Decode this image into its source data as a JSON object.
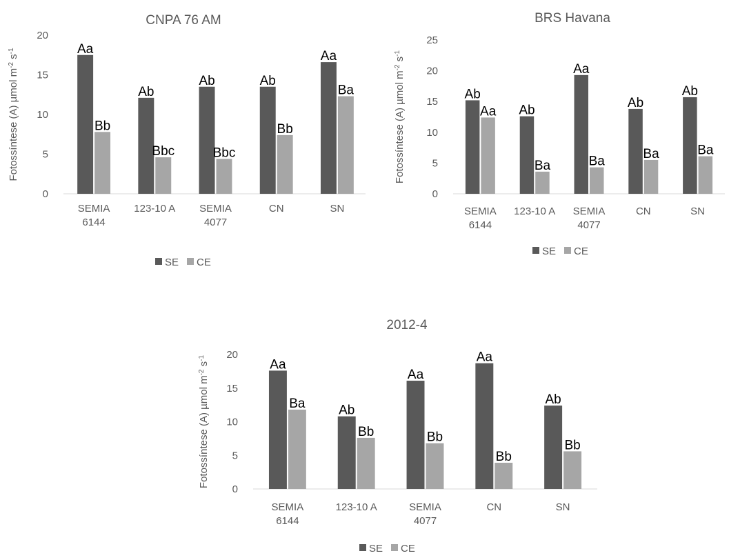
{
  "colors": {
    "SE": "#595959",
    "CE": "#a6a6a6",
    "axis": "#d9d9d9",
    "text": "#595959"
  },
  "chart_data": [
    {
      "type": "bar",
      "title": "CNPA 76 AM",
      "ylabel": "Fotossíntese (A) µmol m-2 s-1",
      "ylabel_parts": [
        "Fotossíntese (A) µmol m",
        "-2",
        " s",
        "-1"
      ],
      "categories": [
        [
          "SEMIA",
          "6144"
        ],
        [
          "123-10 A"
        ],
        [
          "SEMIA",
          "4077"
        ],
        [
          "CN"
        ],
        [
          "SN"
        ]
      ],
      "ylim": [
        0,
        20
      ],
      "yticks": [
        0,
        5,
        10,
        15,
        20
      ],
      "legend_position": "bottom",
      "series": [
        {
          "name": "SE",
          "values": [
            17.5,
            12.1,
            13.5,
            13.5,
            16.6
          ],
          "labels": [
            "Aa",
            "Ab",
            "Ab",
            "Ab",
            "Aa"
          ]
        },
        {
          "name": "CE",
          "values": [
            7.8,
            4.6,
            4.4,
            7.4,
            12.3
          ],
          "labels": [
            "Bb",
            "Bbc",
            "Bbc",
            "Bb",
            "Ba"
          ]
        }
      ]
    },
    {
      "type": "bar",
      "title": "BRS Havana",
      "ylabel": "Fotossíntese (A) µmol m-2 s-1",
      "ylabel_parts": [
        "Fotossíntese (A) µmol m",
        "-2",
        " s",
        "-1"
      ],
      "categories": [
        [
          "SEMIA",
          "6144"
        ],
        [
          "123-10 A"
        ],
        [
          "SEMIA",
          "4077"
        ],
        [
          "CN"
        ],
        [
          "SN"
        ]
      ],
      "ylim": [
        0,
        25
      ],
      "yticks": [
        0,
        5,
        10,
        15,
        20,
        25
      ],
      "legend_position": "bottom",
      "series": [
        {
          "name": "SE",
          "values": [
            15.2,
            12.6,
            19.3,
            13.8,
            15.7
          ],
          "labels": [
            "Ab",
            "Ab",
            "Aa",
            "Ab",
            "Ab"
          ]
        },
        {
          "name": "CE",
          "values": [
            12.4,
            3.6,
            4.3,
            5.5,
            6.1
          ],
          "labels": [
            "Aa",
            "Ba",
            "Ba",
            "Ba",
            "Ba"
          ]
        }
      ]
    },
    {
      "type": "bar",
      "title": "2012-4",
      "ylabel": "Fotossíntese (A) µmol m-2 s-1",
      "ylabel_parts": [
        "Fotossíntese (A) µmol m",
        "-2",
        " s",
        "-1"
      ],
      "categories": [
        [
          "SEMIA",
          "6144"
        ],
        [
          "123-10 A"
        ],
        [
          "SEMIA",
          "4077"
        ],
        [
          "CN"
        ],
        [
          "SN"
        ]
      ],
      "ylim": [
        0,
        20
      ],
      "yticks": [
        0,
        5,
        10,
        15,
        20
      ],
      "legend_position": "bottom",
      "series": [
        {
          "name": "SE",
          "values": [
            17.6,
            10.8,
            16.1,
            18.7,
            12.4
          ],
          "labels": [
            "Aa",
            "Ab",
            "Aa",
            "Aa",
            "Ab"
          ]
        },
        {
          "name": "CE",
          "values": [
            11.8,
            7.6,
            6.8,
            3.9,
            5.6
          ],
          "labels": [
            "Ba",
            "Bb",
            "Bb",
            "Bb",
            "Bb"
          ]
        }
      ]
    }
  ]
}
